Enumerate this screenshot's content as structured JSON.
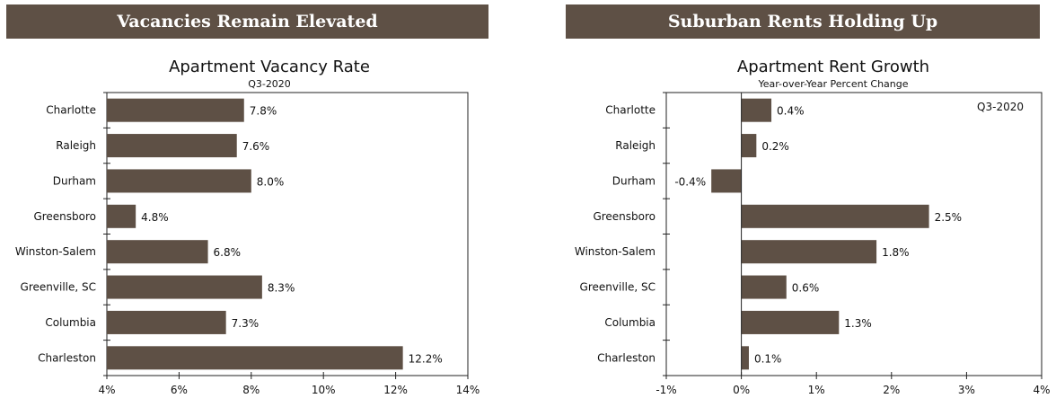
{
  "chart_data": [
    {
      "type": "bar",
      "orientation": "horizontal",
      "banner": "Vacancies Remain Elevated",
      "title": "Apartment Vacancy Rate",
      "subtitle": "Q3-2020",
      "categories": [
        "Charlotte",
        "Raleigh",
        "Durham",
        "Greensboro",
        "Winston-Salem",
        "Greenville, SC",
        "Columbia",
        "Charleston"
      ],
      "values": [
        7.8,
        7.6,
        8.0,
        4.8,
        6.8,
        8.3,
        7.3,
        12.2
      ],
      "value_labels": [
        "7.8%",
        "7.6%",
        "8.0%",
        "4.8%",
        "6.8%",
        "8.3%",
        "7.3%",
        "12.2%"
      ],
      "xlim": [
        4,
        14
      ],
      "xticks": [
        4,
        6,
        8,
        10,
        12,
        14
      ],
      "xtick_labels": [
        "4%",
        "6%",
        "8%",
        "10%",
        "12%",
        "14%"
      ],
      "bar_color": "#5e5045",
      "grid": false
    },
    {
      "type": "bar",
      "orientation": "horizontal",
      "banner": "Suburban Rents Holding Up",
      "title": "Apartment Rent Growth",
      "subtitle": "Year-over-Year Percent Change",
      "annotation": "Q3-2020",
      "categories": [
        "Charlotte",
        "Raleigh",
        "Durham",
        "Greensboro",
        "Winston-Salem",
        "Greenville, SC",
        "Columbia",
        "Charleston"
      ],
      "values": [
        0.4,
        0.2,
        -0.4,
        2.5,
        1.8,
        0.6,
        1.3,
        0.1
      ],
      "value_labels": [
        "0.4%",
        "0.2%",
        "-0.4%",
        "2.5%",
        "1.8%",
        "0.6%",
        "1.3%",
        "0.1%"
      ],
      "xlim": [
        -1,
        4
      ],
      "xticks": [
        -1,
        0,
        1,
        2,
        3,
        4
      ],
      "xtick_labels": [
        "-1%",
        "0%",
        "1%",
        "2%",
        "3%",
        "4%"
      ],
      "bar_color": "#5e5045",
      "grid": false
    }
  ]
}
